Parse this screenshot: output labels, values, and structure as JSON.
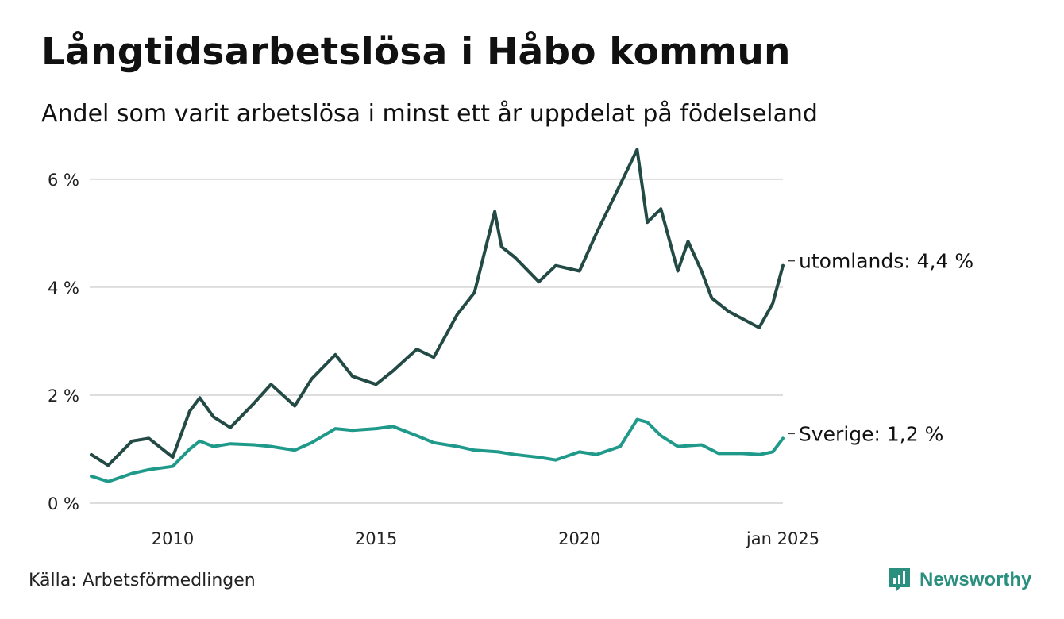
{
  "title": "Långtidsarbetslösa i Håbo kommun",
  "subtitle": "Andel som varit arbetslösa i minst ett år uppdelat på födelseland",
  "source": "Källa: Arbetsförmedlingen",
  "brand": {
    "name": "Newsworthy",
    "icon": "newsworthy-logo-icon",
    "color": "#2a8f7f"
  },
  "chart_data": {
    "type": "line",
    "x_start": "2008-01",
    "x_end": "2025-01",
    "x_ticks": [
      {
        "x": "2010-01",
        "label": "2010"
      },
      {
        "x": "2015-01",
        "label": "2015"
      },
      {
        "x": "2020-01",
        "label": "2020"
      },
      {
        "x": "2025-01",
        "label": "jan 2025"
      }
    ],
    "ylim": [
      0,
      6.6
    ],
    "y_ticks": [
      {
        "value": 0,
        "label": "0 %"
      },
      {
        "value": 2,
        "label": "2 %"
      },
      {
        "value": 4,
        "label": "4 %"
      },
      {
        "value": 6,
        "label": "6 %"
      }
    ],
    "grid": "horizontal",
    "series": [
      {
        "name": "utomlands",
        "color": "#234a45",
        "end_label": "utomlands: 4,4 %",
        "points": [
          [
            "2008-01",
            0.9
          ],
          [
            "2008-06",
            0.7
          ],
          [
            "2009-01",
            1.15
          ],
          [
            "2009-06",
            1.2
          ],
          [
            "2010-01",
            0.85
          ],
          [
            "2010-06",
            1.7
          ],
          [
            "2010-09",
            1.95
          ],
          [
            "2011-01",
            1.6
          ],
          [
            "2011-06",
            1.4
          ],
          [
            "2012-01",
            1.85
          ],
          [
            "2012-06",
            2.2
          ],
          [
            "2013-01",
            1.8
          ],
          [
            "2013-06",
            2.3
          ],
          [
            "2014-01",
            2.75
          ],
          [
            "2014-06",
            2.35
          ],
          [
            "2015-01",
            2.2
          ],
          [
            "2015-06",
            2.45
          ],
          [
            "2016-01",
            2.85
          ],
          [
            "2016-06",
            2.7
          ],
          [
            "2017-01",
            3.5
          ],
          [
            "2017-06",
            3.9
          ],
          [
            "2017-12",
            5.4
          ],
          [
            "2018-02",
            4.75
          ],
          [
            "2018-06",
            4.55
          ],
          [
            "2019-01",
            4.1
          ],
          [
            "2019-06",
            4.4
          ],
          [
            "2020-01",
            4.3
          ],
          [
            "2020-06",
            5.0
          ],
          [
            "2021-01",
            5.9
          ],
          [
            "2021-06",
            6.55
          ],
          [
            "2021-09",
            5.2
          ],
          [
            "2022-01",
            5.45
          ],
          [
            "2022-06",
            4.3
          ],
          [
            "2022-09",
            4.85
          ],
          [
            "2023-01",
            4.3
          ],
          [
            "2023-04",
            3.8
          ],
          [
            "2023-09",
            3.55
          ],
          [
            "2024-06",
            3.25
          ],
          [
            "2024-10",
            3.7
          ],
          [
            "2025-01",
            4.4
          ]
        ]
      },
      {
        "name": "Sverige",
        "color": "#1f9a8a",
        "end_label": "Sverige: 1,2 %",
        "points": [
          [
            "2008-01",
            0.5
          ],
          [
            "2008-06",
            0.4
          ],
          [
            "2009-01",
            0.55
          ],
          [
            "2009-06",
            0.62
          ],
          [
            "2010-01",
            0.68
          ],
          [
            "2010-06",
            1.0
          ],
          [
            "2010-09",
            1.15
          ],
          [
            "2011-01",
            1.05
          ],
          [
            "2011-06",
            1.1
          ],
          [
            "2012-01",
            1.08
          ],
          [
            "2012-06",
            1.05
          ],
          [
            "2013-01",
            0.98
          ],
          [
            "2013-06",
            1.12
          ],
          [
            "2014-01",
            1.38
          ],
          [
            "2014-06",
            1.35
          ],
          [
            "2015-01",
            1.38
          ],
          [
            "2015-06",
            1.42
          ],
          [
            "2016-01",
            1.25
          ],
          [
            "2016-06",
            1.12
          ],
          [
            "2017-01",
            1.05
          ],
          [
            "2017-06",
            0.98
          ],
          [
            "2018-01",
            0.95
          ],
          [
            "2018-06",
            0.9
          ],
          [
            "2019-01",
            0.85
          ],
          [
            "2019-06",
            0.8
          ],
          [
            "2020-01",
            0.95
          ],
          [
            "2020-06",
            0.9
          ],
          [
            "2021-01",
            1.05
          ],
          [
            "2021-06",
            1.55
          ],
          [
            "2021-09",
            1.5
          ],
          [
            "2022-01",
            1.25
          ],
          [
            "2022-06",
            1.05
          ],
          [
            "2023-01",
            1.08
          ],
          [
            "2023-06",
            0.92
          ],
          [
            "2024-01",
            0.92
          ],
          [
            "2024-06",
            0.9
          ],
          [
            "2024-10",
            0.95
          ],
          [
            "2025-01",
            1.2
          ]
        ]
      }
    ]
  }
}
